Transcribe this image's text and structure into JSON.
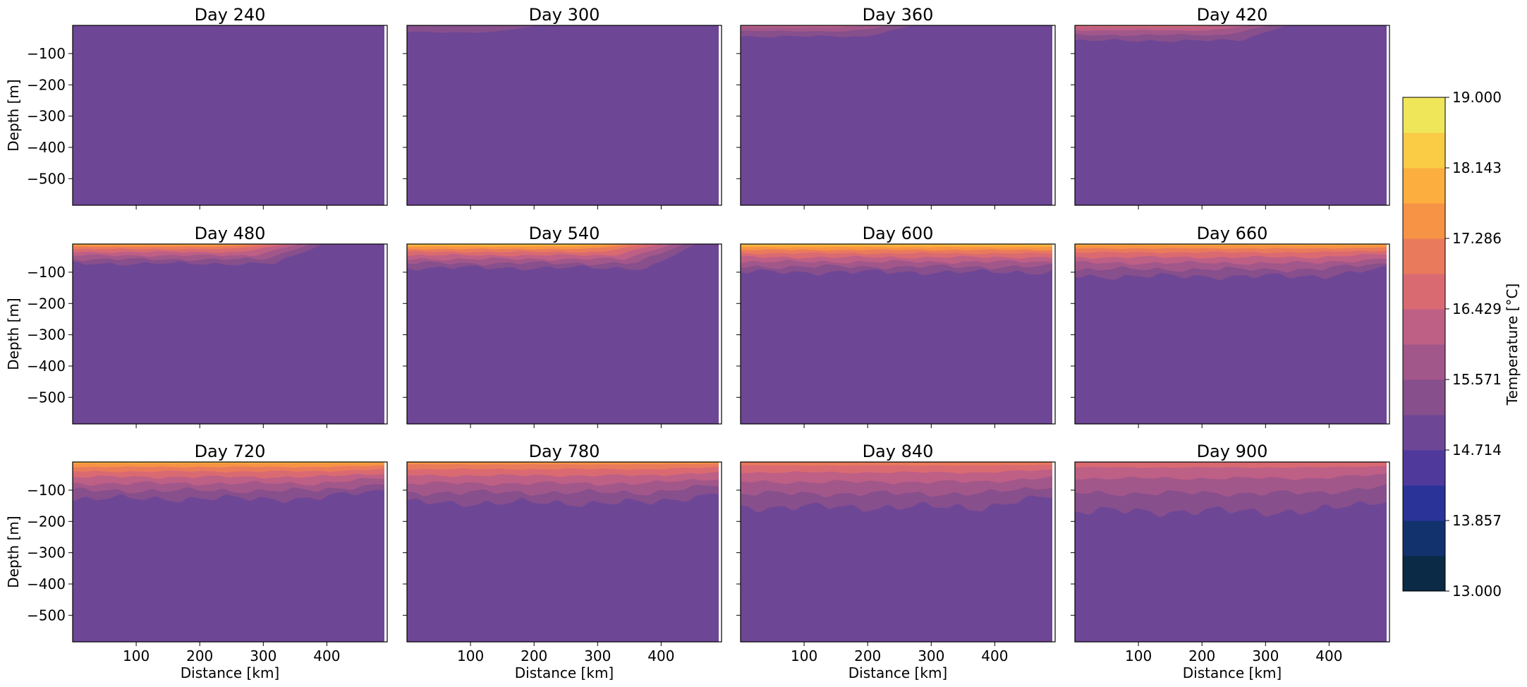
{
  "chart_data": {
    "type": "contour",
    "panels": [
      {
        "title": "Day 240",
        "day": 240,
        "surface_max_temp": 15.3
      },
      {
        "title": "Day 300",
        "day": 300,
        "surface_max_temp": 15.5
      },
      {
        "title": "Day 360",
        "day": 360,
        "surface_max_temp": 16.6
      },
      {
        "title": "Day 420",
        "day": 420,
        "surface_max_temp": 17.0
      },
      {
        "title": "Day 480",
        "day": 480,
        "surface_max_temp": 18.2
      },
      {
        "title": "Day 540",
        "day": 540,
        "surface_max_temp": 18.4
      },
      {
        "title": "Day 600",
        "day": 600,
        "surface_max_temp": 18.4
      },
      {
        "title": "Day 660",
        "day": 660,
        "surface_max_temp": 18.3
      },
      {
        "title": "Day 720",
        "day": 720,
        "surface_max_temp": 18.0
      },
      {
        "title": "Day 780",
        "day": 780,
        "surface_max_temp": 17.8
      },
      {
        "title": "Day 840",
        "day": 840,
        "surface_max_temp": 17.2
      },
      {
        "title": "Day 900",
        "day": 900,
        "surface_max_temp": 16.9
      }
    ],
    "xlabel": "Distance [km]",
    "ylabel": "Depth [m]",
    "xlim": [
      0,
      495
    ],
    "ylim": [
      -585,
      -10
    ],
    "x_ticks": [
      100,
      200,
      300,
      400
    ],
    "x_tick_labels": [
      "100",
      "200",
      "300",
      "400"
    ],
    "y_ticks": [
      -100,
      -200,
      -300,
      -400,
      -500
    ],
    "y_tick_labels": [
      "−100",
      "−200",
      "−300",
      "−400",
      "−500"
    ],
    "colorbar": {
      "label": "Temperature [°C]",
      "vmin": 13.0,
      "vmax": 19.0,
      "levels": 14,
      "tick_values": [
        13.0,
        13.857,
        14.714,
        15.571,
        16.429,
        17.286,
        18.143,
        19.0
      ],
      "tick_labels": [
        "13.000",
        "13.857",
        "14.714",
        "15.571",
        "16.429",
        "17.286",
        "18.143",
        "19.000"
      ],
      "colors": [
        "#0a2a45",
        "#12326e",
        "#2a3398",
        "#4f3a9c",
        "#6e4696",
        "#874f8c",
        "#a2578a",
        "#be5f86",
        "#d96a72",
        "#ea7a5c",
        "#f79345",
        "#fcae3e",
        "#facb45",
        "#efe65a"
      ]
    }
  }
}
